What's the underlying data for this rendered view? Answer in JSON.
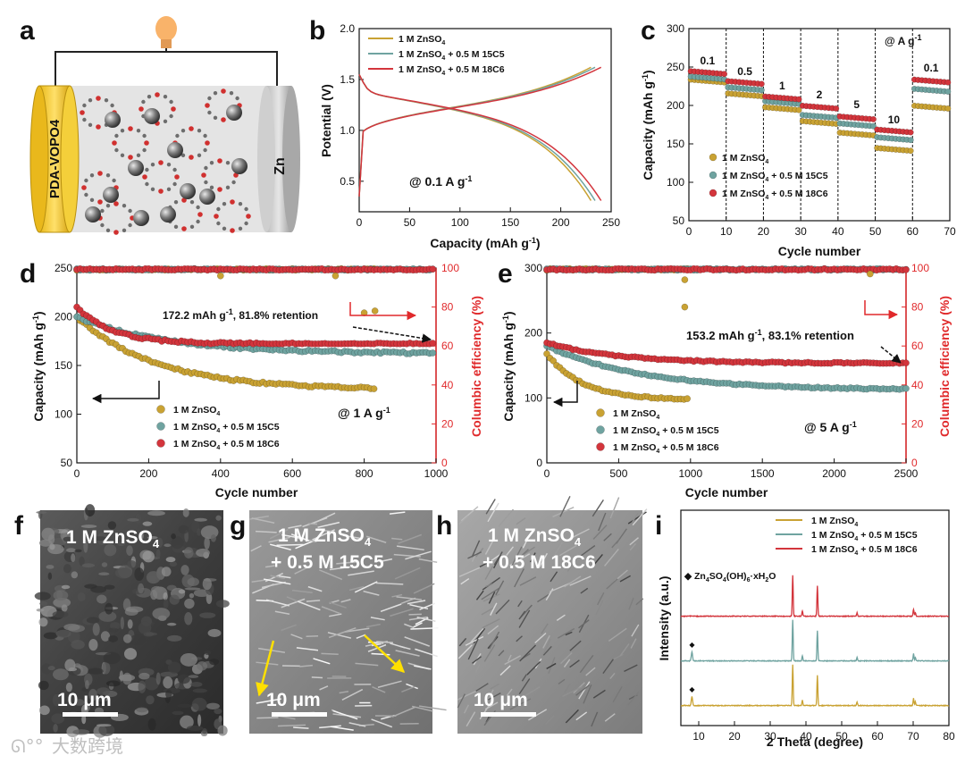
{
  "colors": {
    "zn": "#c9a233",
    "c15": "#6fa3a0",
    "c18": "#d3353c",
    "ce_axis": "#e0292b"
  },
  "panel_a": {
    "letter": "a",
    "cathode": "PDA-VOPO4",
    "anode": "Zn"
  },
  "chart_data": [
    {
      "panel": "b",
      "type": "line",
      "xlabel": "Capacity (mAh g-1)",
      "ylabel": "Potential (V)",
      "xlim": [
        0,
        250
      ],
      "ylim": [
        0.2,
        2.0
      ],
      "xticks": [
        0,
        50,
        100,
        150,
        200,
        250
      ],
      "yticks": [
        0.5,
        1.0,
        1.5,
        2.0
      ],
      "annotation": "@ 0.1 A g-1",
      "series": [
        {
          "name": "1 M ZnSO4",
          "color": "#c9a233",
          "end_capacity": 230
        },
        {
          "name": "1 M ZnSO4 + 0.5 M 15C5",
          "color": "#6fa3a0",
          "end_capacity": 234
        },
        {
          "name": "1 M ZnSO4 + 0.5 M 18C6",
          "color": "#d3353c",
          "end_capacity": 240
        }
      ]
    },
    {
      "panel": "c",
      "type": "scatter",
      "xlabel": "Cycle number",
      "ylabel": "Capacity (mAh g-1)",
      "xlim": [
        0,
        70
      ],
      "ylim": [
        50,
        300
      ],
      "xticks": [
        0,
        10,
        20,
        30,
        40,
        50,
        60,
        70
      ],
      "yticks": [
        50,
        100,
        150,
        200,
        250,
        300
      ],
      "rate_label": "@ A g-1",
      "rates": [
        "0.1",
        "0.5",
        "1",
        "2",
        "5",
        "10",
        "0.1"
      ],
      "series": [
        {
          "name": "1 M ZnSO4",
          "color": "#c9a233",
          "levels": [
            232,
            214,
            196,
            178,
            163,
            143,
            198
          ]
        },
        {
          "name": "1 M ZnSO4 + 0.5 M 15C5",
          "color": "#6fa3a0",
          "levels": [
            236,
            222,
            204,
            186,
            175,
            157,
            220
          ]
        },
        {
          "name": "1 M ZnSO4 + 0.5 M 18C6",
          "color": "#d3353c",
          "levels": [
            243,
            230,
            210,
            198,
            184,
            167,
            232
          ]
        }
      ]
    },
    {
      "panel": "d",
      "type": "scatter",
      "xlabel": "Cycle number",
      "ylabel": "Capacity (mAh g-1)",
      "y2label": "Columbic efficiency (%)",
      "xlim": [
        0,
        1000
      ],
      "ylim": [
        50,
        250
      ],
      "y2lim": [
        0,
        100
      ],
      "xticks": [
        0,
        200,
        400,
        600,
        800,
        1000
      ],
      "yticks": [
        50,
        100,
        150,
        200,
        250
      ],
      "y2ticks": [
        0,
        20,
        40,
        60,
        80,
        100
      ],
      "annotation": "172.2 mAh g-1, 81.8% retention",
      "rate": "@ 1 A g-1",
      "series": [
        {
          "name": "1 M ZnSO4",
          "color": "#c9a233",
          "start": 200,
          "end": 125,
          "n_end": 830,
          "decay": 0.0045
        },
        {
          "name": "1 M ZnSO4 + 0.5 M 15C5",
          "color": "#6fa3a0",
          "start": 200,
          "end": 162,
          "n_end": 1000,
          "decay": 0.004
        },
        {
          "name": "1 M ZnSO4 + 0.5 M 18C6",
          "color": "#d3353c",
          "start": 210,
          "end": 172.2,
          "n_end": 1000,
          "decay": 0.01
        }
      ]
    },
    {
      "panel": "e",
      "type": "scatter",
      "xlabel": "Cycle number",
      "ylabel": "Capacity (mAh g-1)",
      "y2label": "Columbic efficiency (%)",
      "xlim": [
        0,
        2500
      ],
      "ylim": [
        0,
        300
      ],
      "y2lim": [
        0,
        100
      ],
      "xticks": [
        0,
        500,
        1000,
        1500,
        2000,
        2500
      ],
      "yticks": [
        0,
        100,
        200,
        300
      ],
      "y2ticks": [
        0,
        20,
        40,
        60,
        80,
        100
      ],
      "annotation": "153.2 mAh g-1, 83.1% retention",
      "rate": "@ 5 A g-1",
      "series": [
        {
          "name": "1 M ZnSO4",
          "color": "#c9a233",
          "start": 168,
          "end": 97,
          "n_end": 1000,
          "decay": 0.004
        },
        {
          "name": "1 M ZnSO4 + 0.5 M 15C5",
          "color": "#6fa3a0",
          "start": 180,
          "end": 112,
          "n_end": 2500,
          "decay": 0.0015
        },
        {
          "name": "1 M ZnSO4 + 0.5 M 18C6",
          "color": "#d3353c",
          "start": 185,
          "end": 153.2,
          "n_end": 2500,
          "decay": 0.002
        }
      ]
    },
    {
      "panel": "i",
      "type": "line",
      "xlabel": "2 Theta (degree)",
      "ylabel": "Intensity (a.u.)",
      "xlim": [
        5,
        80
      ],
      "xticks": [
        10,
        20,
        30,
        40,
        50,
        60,
        70,
        80
      ],
      "marker_legend": "Zn4SO4(OH)6·xH2O",
      "peaks": [
        36.3,
        39.0,
        43.2,
        54.3,
        70.1,
        70.6
      ],
      "series": [
        {
          "name": "1 M ZnSO4",
          "color": "#c9a233",
          "extra_peak": 8.1
        },
        {
          "name": "1 M ZnSO4 + 0.5 M 15C5",
          "color": "#6fa3a0",
          "extra_peak": 8.1
        },
        {
          "name": "1 M ZnSO4 + 0.5 M 18C6",
          "color": "#d3353c",
          "extra_peak": null
        }
      ]
    }
  ],
  "sem": {
    "f": {
      "letter": "f",
      "label": "1 M ZnSO4",
      "scale": "10 μm"
    },
    "g": {
      "letter": "g",
      "label1": "1 M ZnSO4",
      "label2": "+ 0.5 M 15C5",
      "scale": "10 μm"
    },
    "h": {
      "letter": "h",
      "label1": "1 M ZnSO4",
      "label2": "+ 0.5 M 18C6",
      "scale": "10 μm"
    }
  },
  "watermark": "大数跨境"
}
